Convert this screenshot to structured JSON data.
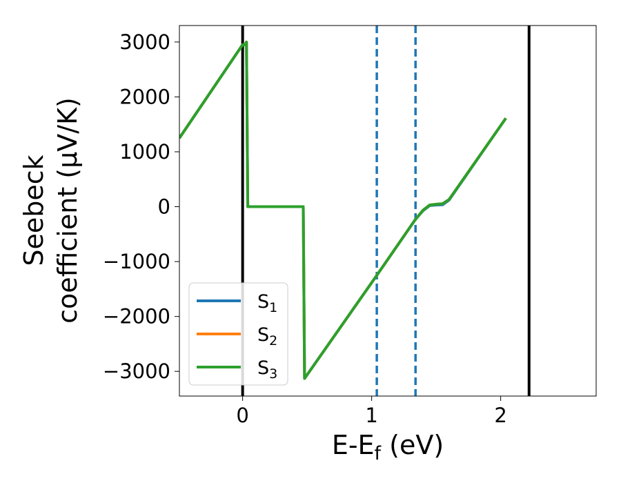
{
  "chart_data": {
    "type": "line",
    "xlabel_main": "E-E",
    "xlabel_sub": "f",
    "xlabel_unit": " (eV)",
    "ylabel_line1": "Seebeck",
    "ylabel_line2": "coefficient  (μV/K)",
    "xlim": [
      -0.49,
      2.74
    ],
    "ylim": [
      -3450,
      3300
    ],
    "xticks": [
      0,
      1,
      2
    ],
    "xtick_labels": [
      "0",
      "1",
      "2"
    ],
    "yticks": [
      3000,
      2000,
      1000,
      0,
      -1000,
      -2000,
      -3000
    ],
    "ytick_labels": [
      "3000",
      "2000",
      "1000",
      "0",
      "−1000",
      "−2000",
      "−3000"
    ],
    "grid": false,
    "legend_position": "lower-left",
    "vertical_lines": [
      {
        "x": 0.0,
        "style": "solid",
        "color": "#000000"
      },
      {
        "x": 2.22,
        "style": "solid",
        "color": "#000000"
      },
      {
        "x": 1.04,
        "style": "dashed",
        "color": "#1f77b4"
      },
      {
        "x": 1.34,
        "style": "dashed",
        "color": "#1f77b4"
      }
    ],
    "series": [
      {
        "name": "S",
        "sub": "1",
        "color": "#1f77b4",
        "points": [
          [
            -0.49,
            1250
          ],
          [
            0.0,
            2950
          ],
          [
            0.02,
            2950
          ],
          [
            0.03,
            3000
          ],
          [
            0.04,
            0
          ],
          [
            0.47,
            0
          ],
          [
            0.48,
            -3130
          ],
          [
            1.04,
            -1250
          ],
          [
            1.34,
            -230
          ],
          [
            1.4,
            -70
          ],
          [
            1.45,
            20
          ],
          [
            1.5,
            30
          ],
          [
            1.55,
            35
          ],
          [
            1.6,
            120
          ],
          [
            2.04,
            1610
          ]
        ]
      },
      {
        "name": "S",
        "sub": "2",
        "color": "#ff7f0e",
        "points": [
          [
            -0.49,
            1250
          ],
          [
            0.0,
            2950
          ],
          [
            0.02,
            2950
          ],
          [
            0.03,
            3000
          ],
          [
            0.04,
            0
          ],
          [
            0.47,
            0
          ],
          [
            0.48,
            -3130
          ],
          [
            1.04,
            -1250
          ],
          [
            1.34,
            -230
          ],
          [
            1.4,
            -60
          ],
          [
            1.45,
            30
          ],
          [
            1.5,
            45
          ],
          [
            1.55,
            55
          ],
          [
            1.6,
            130
          ],
          [
            2.04,
            1610
          ]
        ]
      },
      {
        "name": "S",
        "sub": "3",
        "color": "#2ca02c",
        "points": [
          [
            -0.49,
            1250
          ],
          [
            0.0,
            2950
          ],
          [
            0.02,
            2950
          ],
          [
            0.03,
            3000
          ],
          [
            0.04,
            0
          ],
          [
            0.47,
            0
          ],
          [
            0.48,
            -3130
          ],
          [
            1.04,
            -1250
          ],
          [
            1.34,
            -230
          ],
          [
            1.4,
            -60
          ],
          [
            1.45,
            30
          ],
          [
            1.5,
            45
          ],
          [
            1.55,
            55
          ],
          [
            1.6,
            130
          ],
          [
            2.04,
            1610
          ]
        ]
      }
    ]
  }
}
